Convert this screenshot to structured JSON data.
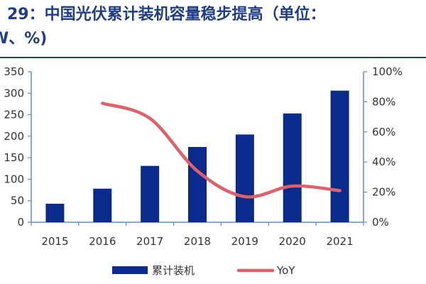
{
  "title": {
    "line1": "29：中国光伏累计装机容量稳步提高（单位：",
    "line2": "W、%)"
  },
  "colors": {
    "title": "#1f3c88",
    "bar": "#0a2a8c",
    "line": "#e0606a",
    "axis": "#5b8fc9"
  },
  "chart_data": {
    "type": "bar",
    "categories": [
      "2015",
      "2016",
      "2017",
      "2018",
      "2019",
      "2020",
      "2021"
    ],
    "series": [
      {
        "name": "累计装机",
        "type": "bar",
        "axis": "left",
        "values": [
          43,
          78,
          131,
          175,
          204,
          253,
          306
        ]
      },
      {
        "name": "YoY",
        "type": "line",
        "axis": "right",
        "smooth": true,
        "values": [
          null,
          79,
          69,
          34,
          17,
          24,
          21
        ]
      }
    ],
    "y_left": {
      "ticks": [
        "350",
        "300",
        "250",
        "200",
        "150",
        "100",
        "50",
        "0"
      ],
      "tick_values": [
        350,
        300,
        250,
        200,
        150,
        100,
        50,
        0
      ],
      "ylim": [
        0,
        350
      ]
    },
    "y_right": {
      "ticks": [
        "100%",
        "80%",
        "60%",
        "40%",
        "20%",
        "0%"
      ],
      "tick_values": [
        100,
        80,
        60,
        40,
        20,
        0
      ],
      "ylim": [
        0,
        100
      ]
    },
    "legend": {
      "position": "bottom",
      "labels": [
        "累计装机",
        "YoY"
      ]
    },
    "grid": false
  }
}
